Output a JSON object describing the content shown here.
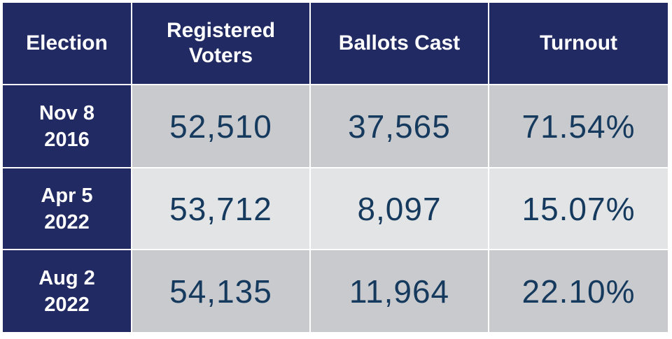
{
  "table": {
    "header": [
      "Election",
      "Registered Voters",
      "Ballots Cast",
      "Turnout"
    ],
    "rows": [
      [
        "Nov 8 2016",
        "52,510",
        "37,565",
        "71.54%"
      ],
      [
        "Apr 5 2022",
        "53,712",
        "8,097",
        "15.07%"
      ],
      [
        "Aug 2 2022",
        "54,135",
        "11,964",
        "22.10%"
      ]
    ]
  }
}
